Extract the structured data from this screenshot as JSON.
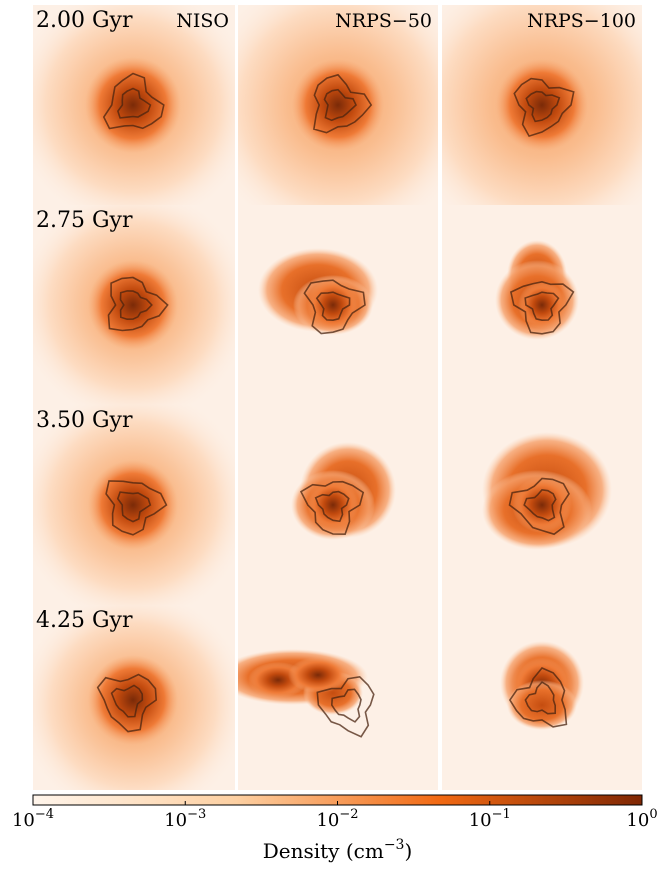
{
  "chart_data": {
    "type": "image-grid",
    "rows": [
      "2.00 Gyr",
      "2.75 Gyr",
      "3.50 Gyr",
      "4.25 Gyr"
    ],
    "columns": [
      "NISO",
      "NRPS−50",
      "NRPS−100"
    ],
    "colorbar": {
      "log_scale": true,
      "clim": [
        0.0001,
        1
      ],
      "ticks": [
        {
          "value": 0.0001,
          "label": "10",
          "exponent": "−4"
        },
        {
          "value": 0.001,
          "label": "10",
          "exponent": "−3"
        },
        {
          "value": 0.01,
          "label": "10",
          "exponent": "−2"
        },
        {
          "value": 0.1,
          "label": "10",
          "exponent": "−1"
        },
        {
          "value": 1,
          "label": "10",
          "exponent": "0"
        }
      ],
      "label": {
        "text": "Density (cm",
        "exponent": "−3",
        "after": ")"
      },
      "colors": [
        "#fff5eb",
        "#fdd0a2",
        "#f16913",
        "#7f2704"
      ]
    }
  }
}
